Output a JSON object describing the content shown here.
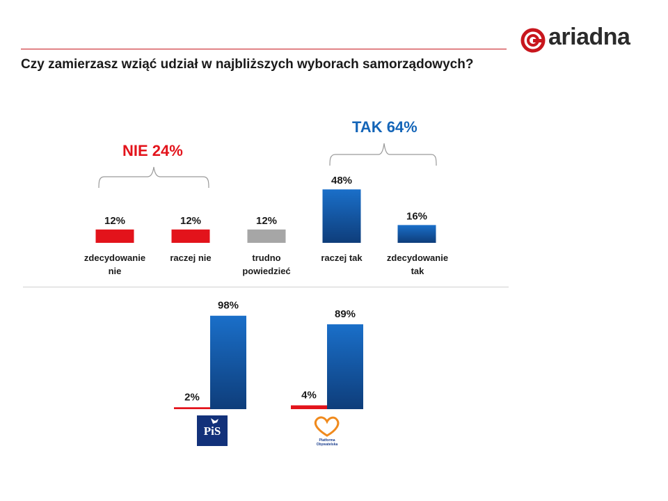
{
  "question": "Czy zamierzasz wziąć udział w najbliższych wyborach samorządowych?",
  "logo": {
    "wordmark": "ariadna",
    "icon": "ariadna-ring-icon",
    "color": "#c8161d"
  },
  "groups": {
    "nie": {
      "label": "NIE 24%",
      "color": "#e3131b"
    },
    "tak": {
      "label": "TAK 64%",
      "color": "#1465b8"
    }
  },
  "colors": {
    "red": "#e3131b",
    "gray": "#a6a6a6",
    "blue_top": "#1a6fc9",
    "blue_bottom": "#0e3d7a"
  },
  "chart_data": [
    {
      "type": "bar",
      "categories": [
        "zdecydowanie nie",
        "raczej nie",
        "trudno powiedzieć",
        "raczej tak",
        "zdecydowanie tak"
      ],
      "values": [
        12,
        12,
        12,
        48,
        16
      ],
      "value_labels": [
        "12%",
        "12%",
        "12%",
        "48%",
        "16%"
      ],
      "bar_colors": [
        "red",
        "red",
        "gray",
        "blue",
        "blue"
      ],
      "ylim": [
        0,
        100
      ]
    },
    {
      "type": "bar",
      "categories": [
        "PiS",
        "Platforma Obywatelska"
      ],
      "series": [
        {
          "values": [
            2,
            4
          ],
          "value_labels": [
            "2%",
            "4%"
          ],
          "color": "red"
        },
        {
          "values": [
            98,
            89
          ],
          "value_labels": [
            "98%",
            "89%"
          ],
          "color": "blue"
        }
      ],
      "ylim": [
        0,
        100
      ]
    }
  ],
  "party_logos": [
    {
      "icon": "pis-logo-icon",
      "text": "PiS"
    },
    {
      "icon": "platforma-obywatelska-logo-icon",
      "text": "Platforma Obywatelska"
    }
  ]
}
